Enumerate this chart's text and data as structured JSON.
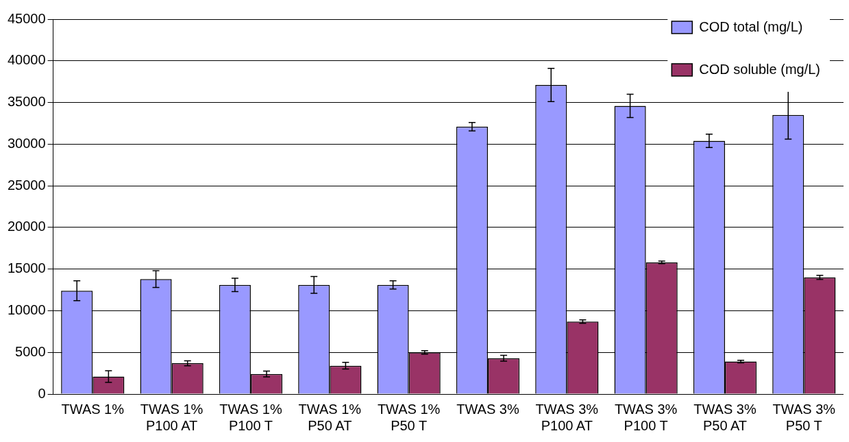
{
  "chart_data": {
    "type": "bar",
    "categories": [
      "TWAS 1%",
      "TWAS 1% P100 AT",
      "TWAS 1% P100 T",
      "TWAS 1% P50 AT",
      "TWAS 1% P50 T",
      "TWAS 3%",
      "TWAS 3% P100 AT",
      "TWAS 3% P100 T",
      "TWAS 3% P50 AT",
      "TWAS 3% P50 T"
    ],
    "series": [
      {
        "name": "COD total (mg/L)",
        "color": "#9999ff",
        "values": [
          12400,
          13800,
          13100,
          13100,
          13100,
          32100,
          37100,
          34600,
          30400,
          33500
        ],
        "errors": [
          1200,
          1000,
          800,
          1000,
          500,
          500,
          2000,
          1400,
          800,
          2900
        ]
      },
      {
        "name": "COD soluble (mg/L)",
        "color": "#993366",
        "values": [
          2100,
          3700,
          2400,
          3400,
          5000,
          4300,
          8700,
          15800,
          3900,
          14000
        ],
        "errors": [
          700,
          300,
          350,
          400,
          200,
          350,
          200,
          150,
          150,
          250
        ]
      }
    ],
    "ylim": [
      0,
      45000
    ],
    "yticks": [
      0,
      5000,
      10000,
      15000,
      20000,
      25000,
      30000,
      35000,
      40000,
      45000
    ],
    "grid": "y",
    "legend": "top right"
  }
}
